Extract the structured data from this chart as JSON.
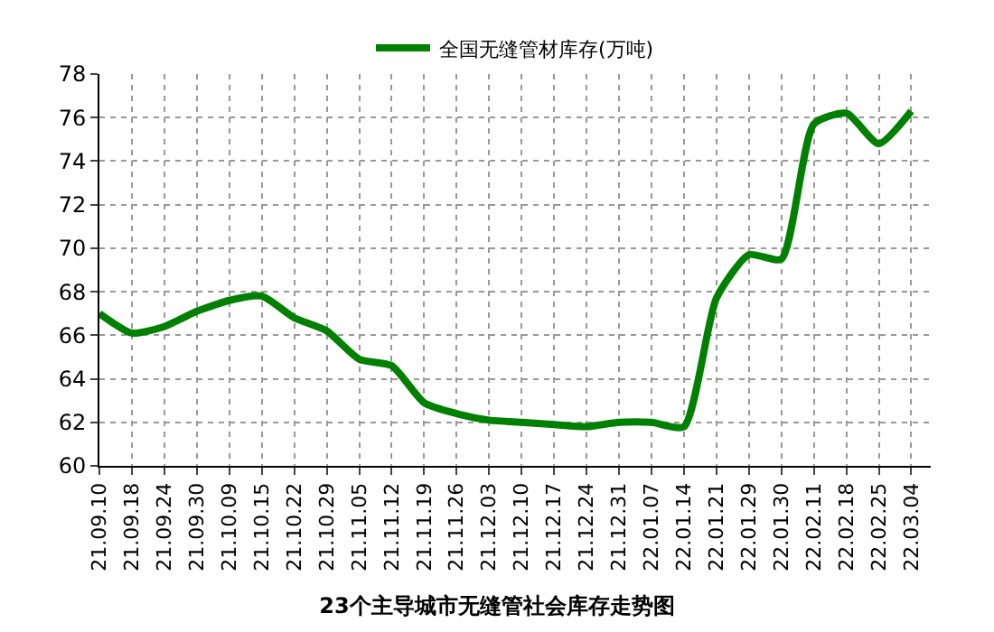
{
  "chart_data": {
    "type": "line",
    "title": "23个主导城市无缝管社会库存走势图",
    "categories": [
      "21.09.10",
      "21.09.18",
      "21.09.24",
      "21.09.30",
      "21.10.09",
      "21.10.15",
      "21.10.22",
      "21.10.29",
      "21.11.05",
      "21.11.12",
      "21.11.19",
      "21.11.26",
      "21.12.03",
      "21.12.10",
      "21.12.17",
      "21.12.24",
      "21.12.31",
      "22.01.07",
      "22.01.14",
      "22.01.21",
      "22.01.29",
      "22.01.30",
      "22.02.11",
      "22.02.18",
      "22.02.25",
      "22.03.04"
    ],
    "series": [
      {
        "name": "全国无缝管材库存(万吨)",
        "color": "#008000",
        "values": [
          67.0,
          66.1,
          66.4,
          67.1,
          67.6,
          67.8,
          66.8,
          66.2,
          64.9,
          64.6,
          62.9,
          62.4,
          62.1,
          62.0,
          61.9,
          61.8,
          62.0,
          62.0,
          61.8,
          67.7,
          69.7,
          69.5,
          75.7,
          76.2,
          74.8,
          76.3
        ]
      }
    ],
    "ylim": [
      60,
      78
    ],
    "yticks": [
      60,
      62,
      64,
      66,
      68,
      70,
      72,
      74,
      76,
      78
    ],
    "grid": true,
    "legend": "top",
    "marker": "none",
    "line_style": "solid"
  }
}
